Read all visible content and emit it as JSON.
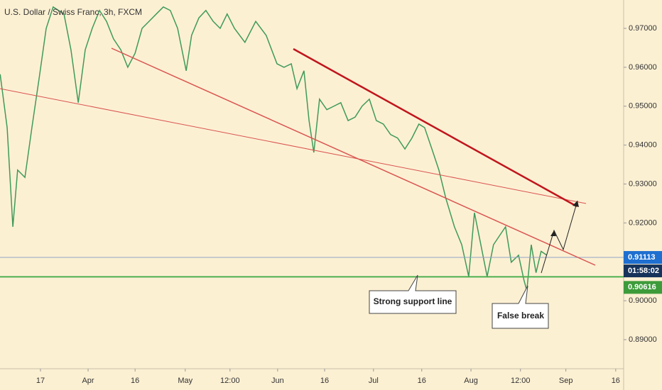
{
  "chart_data": {
    "type": "line",
    "title": "U.S. Dollar / Swiss Franc, 3h, FXCM",
    "x": [
      3.3,
      5.5,
      7.3,
      8.8,
      11.1,
      13.3,
      15.6,
      17.8,
      20.0,
      23.4,
      25.6,
      27.9,
      30.1,
      32.3,
      34.6,
      36.8,
      39.0,
      41.3,
      43.5,
      45.8,
      48.0,
      50.2,
      52.5,
      54.7,
      56.9,
      59.2,
      61.9,
      63.6,
      65.9,
      68.1,
      70.4,
      72.6,
      74.8,
      77.1,
      80.4,
      83.8,
      87.1,
      90.5,
      92.7,
      95.0,
      96.8,
      99.0,
      100.6,
      102.1,
      103.9,
      106.2,
      108.4,
      110.6,
      112.9,
      115.1,
      117.3,
      119.6,
      121.8,
      124.0,
      126.3,
      128.5,
      130.8,
      133.0,
      135.2,
      137.0,
      139.3,
      141.5,
      143.7,
      146.4,
      148.7,
      150.9,
      152.7,
      154.5,
      156.7,
      158.7,
      161.0,
      162.5,
      164.3,
      166.6,
      168.3,
      169.2,
      170.6,
      172.1,
      173.7,
      175.5
    ],
    "series": [
      {
        "name": "USDCHF",
        "color": "#3f9a5a",
        "values": [
          0.9582,
          0.9445,
          0.919,
          0.9336,
          0.9317,
          0.9445,
          0.9573,
          0.97,
          0.9755,
          0.9737,
          0.9645,
          0.9509,
          0.9645,
          0.97,
          0.9746,
          0.9718,
          0.9673,
          0.9645,
          0.96,
          0.9636,
          0.97,
          0.9718,
          0.9737,
          0.9755,
          0.9746,
          0.97,
          0.9591,
          0.9682,
          0.9727,
          0.9746,
          0.9718,
          0.97,
          0.9737,
          0.97,
          0.9664,
          0.9718,
          0.9682,
          0.9609,
          0.96,
          0.9609,
          0.9545,
          0.9591,
          0.9463,
          0.9381,
          0.9518,
          0.9491,
          0.95,
          0.9509,
          0.9463,
          0.9472,
          0.95,
          0.9518,
          0.9463,
          0.9454,
          0.9427,
          0.9418,
          0.939,
          0.9418,
          0.9454,
          0.9445,
          0.939,
          0.9336,
          0.9263,
          0.919,
          0.9144,
          0.9062,
          0.9226,
          0.9153,
          0.9062,
          0.9144,
          0.9172,
          0.919,
          0.9099,
          0.9117,
          0.9053,
          0.9026,
          0.9144,
          0.9072,
          0.9127,
          0.9117
        ]
      }
    ],
    "xlim": [
      3.25,
      199.7
    ],
    "xticks": [
      {
        "value": 16,
        "label": "17"
      },
      {
        "value": 31.0,
        "label": "Apr"
      },
      {
        "value": 45.8,
        "label": "16"
      },
      {
        "value": 61.6,
        "label": "May"
      },
      {
        "value": 75.7,
        "label": "12:00"
      },
      {
        "value": 90.7,
        "label": "Jun"
      },
      {
        "value": 105.5,
        "label": "16"
      },
      {
        "value": 120.9,
        "label": "Jul"
      },
      {
        "value": 136.1,
        "label": "16"
      },
      {
        "value": 151.6,
        "label": "Aug"
      },
      {
        "value": 167.2,
        "label": "12:00"
      },
      {
        "value": 181.5,
        "label": "Sep"
      },
      {
        "value": 197.2,
        "label": "16"
      }
    ],
    "ylim": [
      0.88253,
      0.97729
    ],
    "yticks": [
      {
        "value": 0.97,
        "label": "0.97000"
      },
      {
        "value": 0.96,
        "label": "0.96000"
      },
      {
        "value": 0.95,
        "label": "0.95000"
      },
      {
        "value": 0.94,
        "label": "0.94000"
      },
      {
        "value": 0.93,
        "label": "0.93000"
      },
      {
        "value": 0.92,
        "label": "0.92000"
      },
      {
        "value": 0.91,
        "label": "0.91000"
      },
      {
        "value": 0.9,
        "label": "0.90000"
      },
      {
        "value": 0.89,
        "label": "0.89000"
      }
    ],
    "price_lines": [
      {
        "value": 0.91113,
        "label": "0.91113",
        "color": "#8fa3c4",
        "tag_color": "#1e6fd0",
        "countdown": "01:58:02"
      },
      {
        "value": 0.90616,
        "label": "0.90616",
        "color": "#4caf50",
        "tag_color": "#3d9b3a"
      }
    ],
    "annotations": [
      "Strong support line",
      "False break"
    ]
  }
}
